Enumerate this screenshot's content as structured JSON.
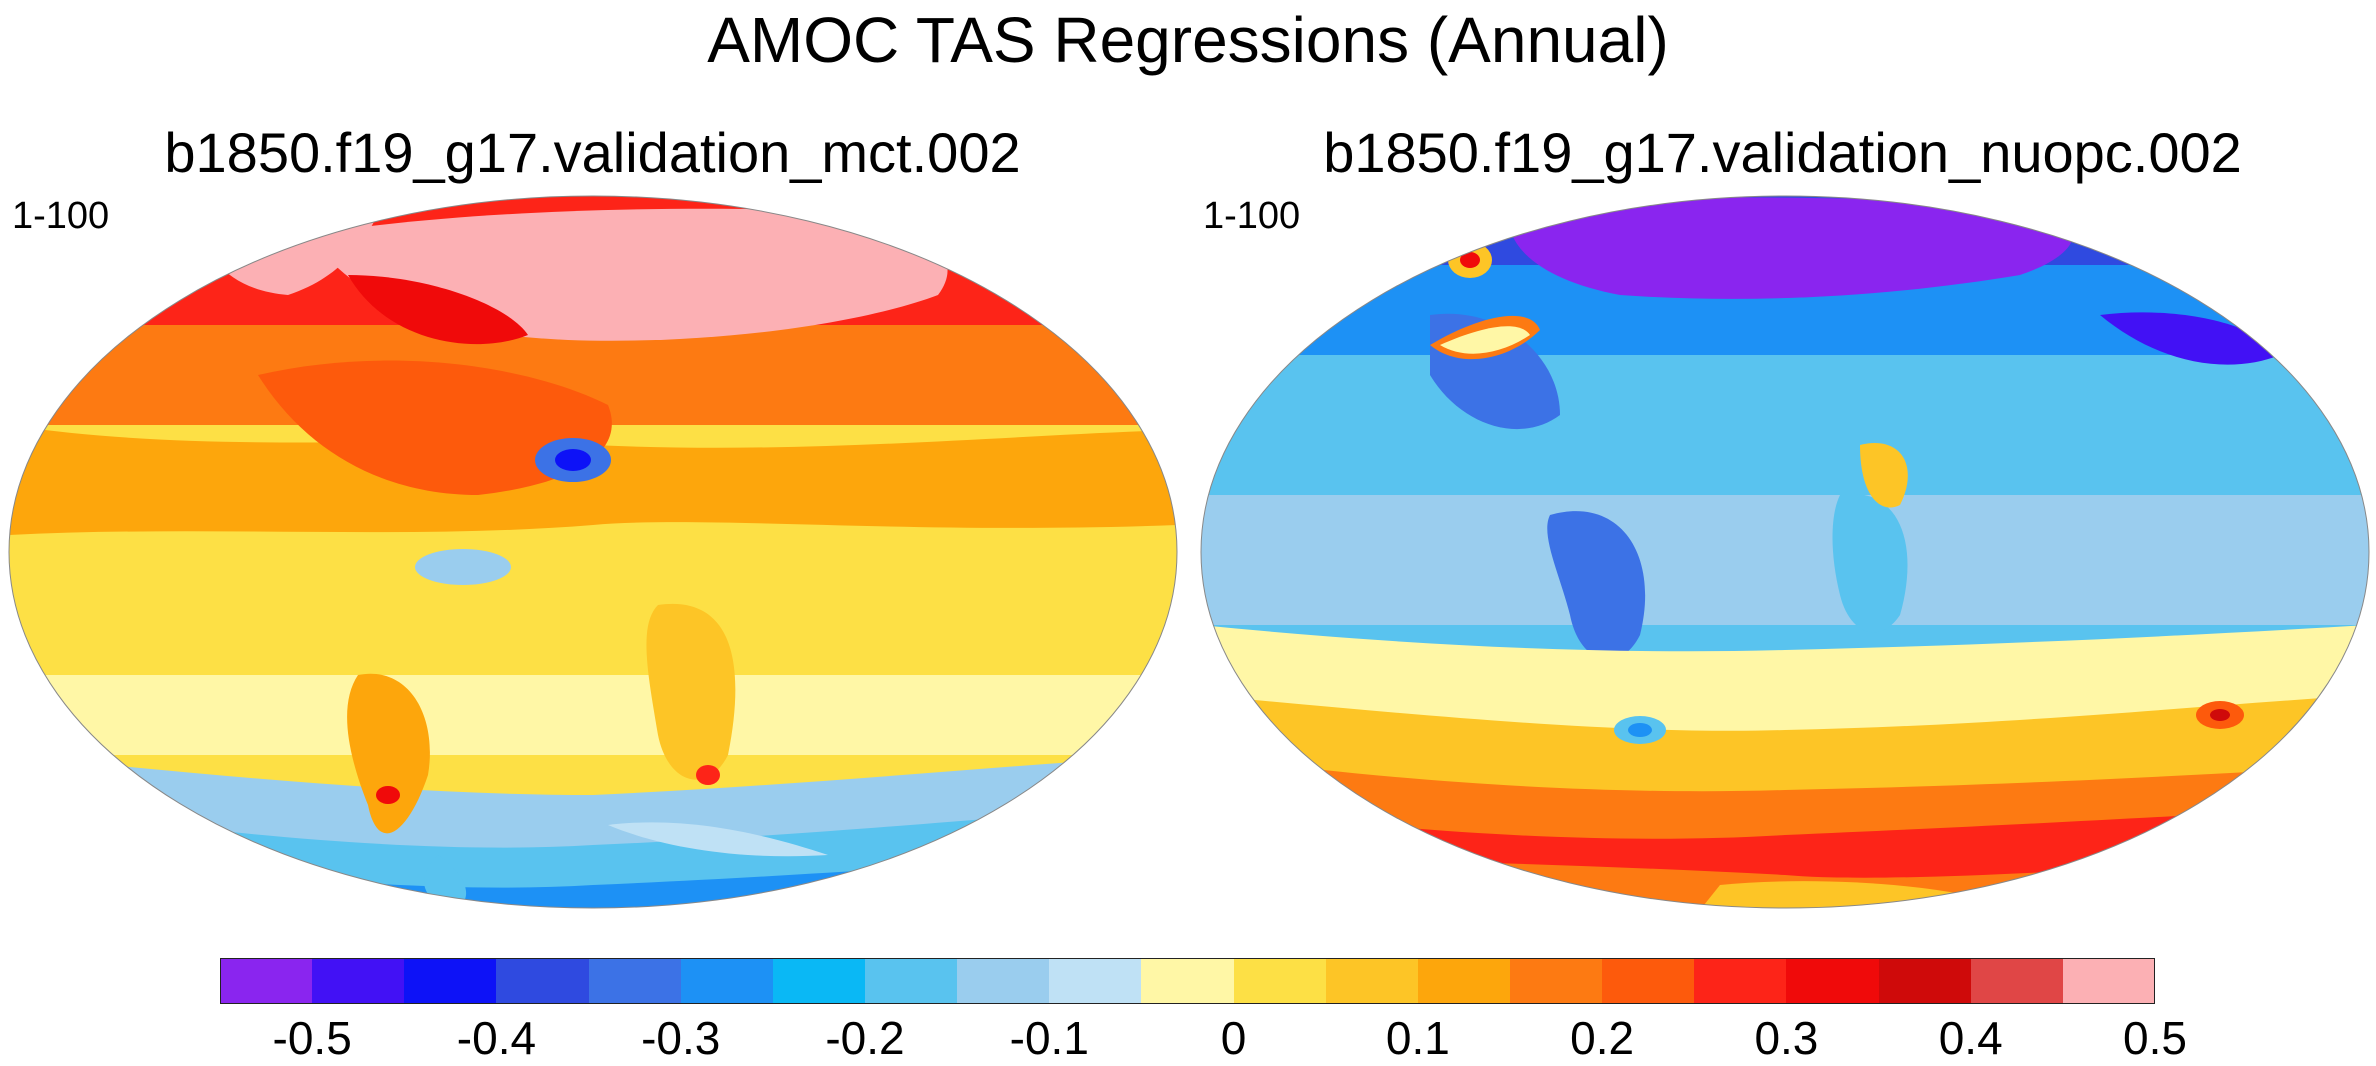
{
  "title": "AMOC TAS Regressions (Annual)",
  "panels": [
    {
      "title": "b1850.f19_g17.validation_mct.002",
      "range": "1-100"
    },
    {
      "title": "b1850.f19_g17.validation_nuopc.002",
      "range": "1-100"
    }
  ],
  "colorbar": {
    "colors": [
      "#8a25ef",
      "#4211f5",
      "#0d12f7",
      "#2f4ae0",
      "#3c72e6",
      "#1d91f5",
      "#0ab8f5",
      "#59c3ef",
      "#9acdee",
      "#bfe1f5",
      "#fff7a6",
      "#fde045",
      "#fdc526",
      "#fda60c",
      "#fd7a12",
      "#fd5a0c",
      "#fd2418",
      "#f00a0a",
      "#cf0a0a",
      "#e04646",
      "#fcb0b4"
    ],
    "ticks": [
      "-0.5",
      "-0.4",
      "-0.3",
      "-0.2",
      "-0.1",
      "0",
      "0.1",
      "0.2",
      "0.3",
      "0.4",
      "0.5"
    ]
  }
}
